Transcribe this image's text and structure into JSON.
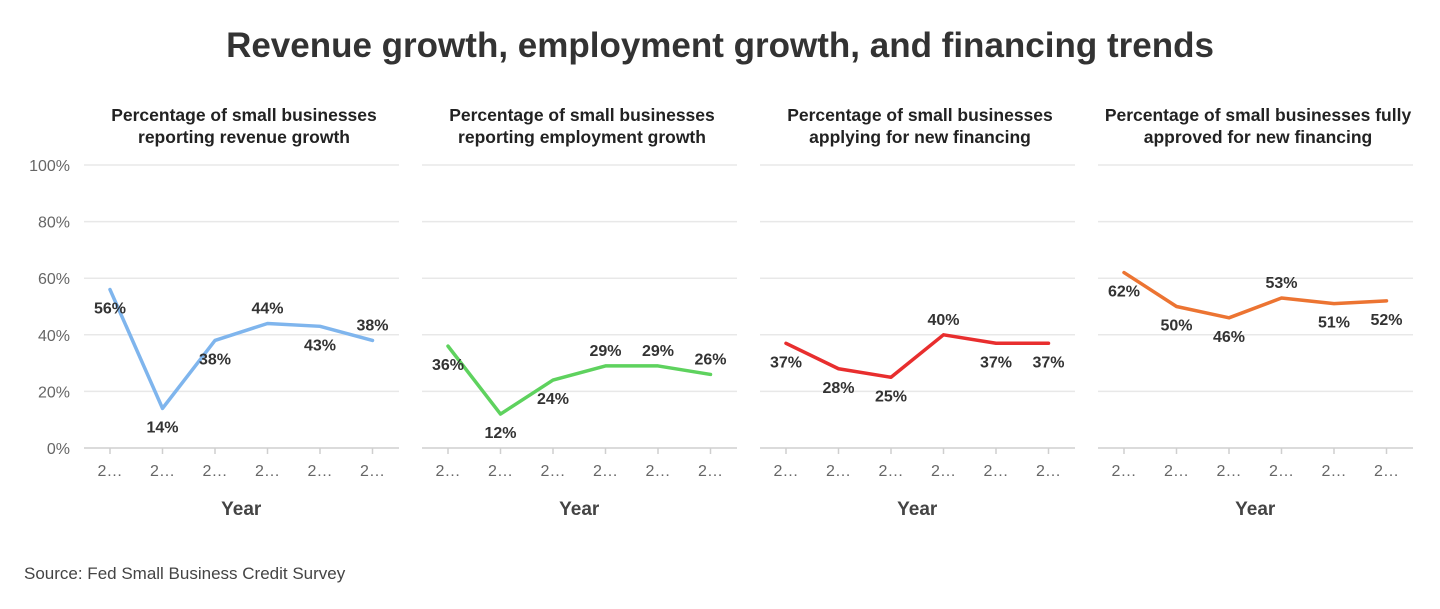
{
  "title": "Revenue growth, employment growth, and financing trends",
  "source": "Source: Fed Small Business Credit Survey",
  "chart_data": {
    "type": "line",
    "y_ticks": [
      "0%",
      "20%",
      "40%",
      "60%",
      "80%",
      "100%"
    ],
    "ylim": [
      0,
      100
    ],
    "grid": true,
    "panels": [
      {
        "title": "Percentage of small businesses reporting revenue growth",
        "xlabel": "Year",
        "x_ticks": [
          "2…",
          "2…",
          "2…",
          "2…",
          "2…",
          "2…"
        ],
        "series": [
          {
            "values": [
              56,
              14,
              38,
              44,
              43,
              38
            ],
            "labels": [
              "56%",
              "14%",
              "38%",
              "44%",
              "43%",
              "38%"
            ],
            "color": "#7fb5ed"
          }
        ]
      },
      {
        "title": "Percentage of small businesses reporting employment growth",
        "xlabel": "Year",
        "x_ticks": [
          "2…",
          "2…",
          "2…",
          "2…",
          "2…",
          "2…"
        ],
        "series": [
          {
            "values": [
              36,
              12,
              24,
              29,
              29,
              26
            ],
            "labels": [
              "36%",
              "12%",
              "24%",
              "29%",
              "29%",
              "26%"
            ],
            "color": "#5ed25e"
          }
        ]
      },
      {
        "title": "Percentage of small businesses applying for new financing",
        "xlabel": "Year",
        "x_ticks": [
          "2…",
          "2…",
          "2…",
          "2…",
          "2…",
          "2…"
        ],
        "series": [
          {
            "values": [
              37,
              28,
              25,
              40,
              37,
              37
            ],
            "labels": [
              "37%",
              "28%",
              "25%",
              "40%",
              "37%",
              "37%"
            ],
            "color": "#e82e2e"
          }
        ]
      },
      {
        "title": "Percentage of small businesses fully approved for new financing",
        "xlabel": "Year",
        "x_ticks": [
          "2…",
          "2…",
          "2…",
          "2…",
          "2…",
          "2…"
        ],
        "series": [
          {
            "values": [
              62,
              50,
              46,
              53,
              51,
              52
            ],
            "labels": [
              "62%",
              "50%",
              "46%",
              "53%",
              "51%",
              "52%"
            ],
            "color": "#ec7432"
          }
        ]
      }
    ]
  }
}
